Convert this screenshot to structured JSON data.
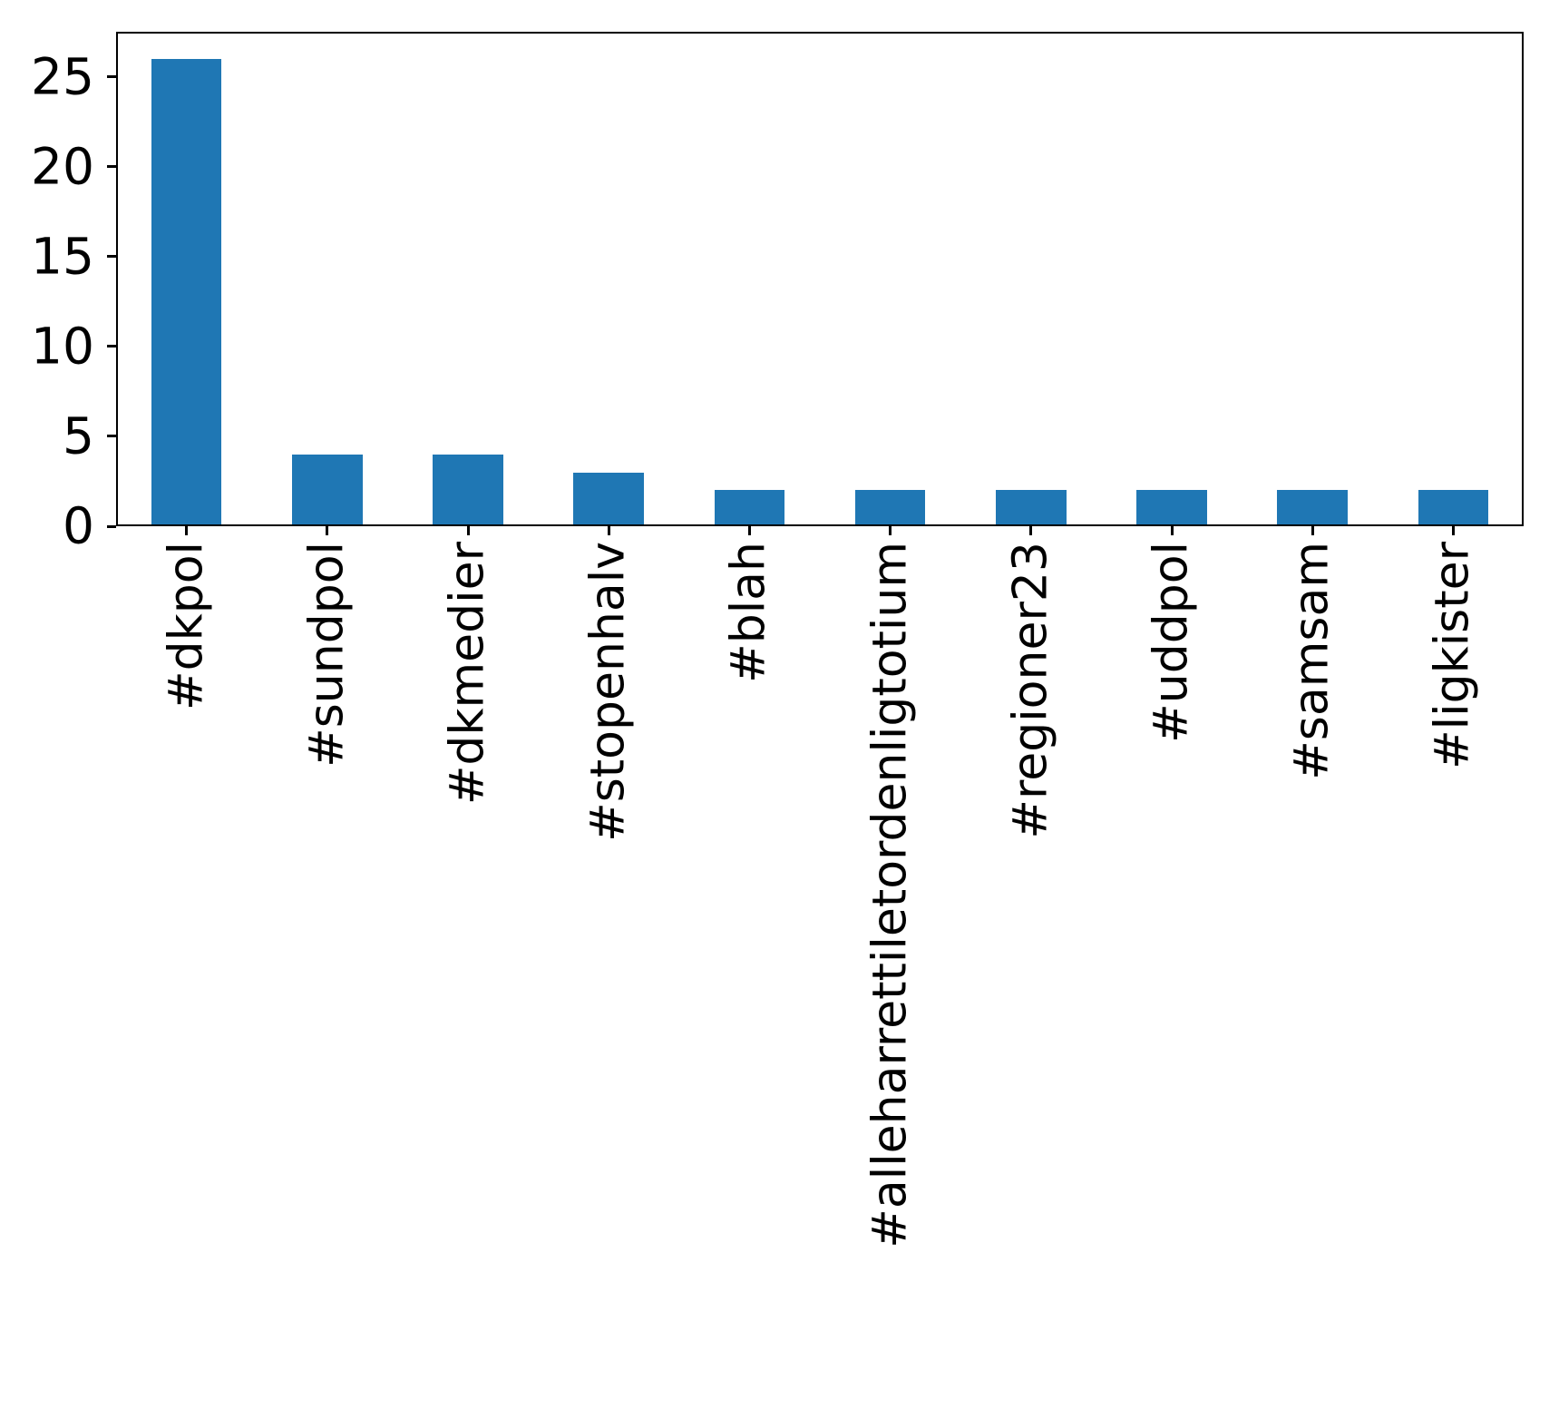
{
  "chart_data": {
    "type": "bar",
    "title": "",
    "xlabel": "",
    "ylabel": "",
    "categories": [
      "#dkpol",
      "#sundpol",
      "#dkmedier",
      "#stopenhalv",
      "#blah",
      "#alleharrettiletordenligtotium",
      "#regioner23",
      "#uddpol",
      "#samsam",
      "#ligkister"
    ],
    "values": [
      26,
      4,
      4,
      3,
      2,
      2,
      2,
      2,
      2,
      2
    ],
    "yticks": [
      0,
      5,
      10,
      15,
      20,
      25
    ],
    "ylim": [
      0,
      27.5
    ],
    "x_tick_rotation": 90,
    "grid": false,
    "legend": null,
    "bar_color": "#1f77b4",
    "axis_color": "#000000",
    "background_color": "#ffffff"
  }
}
